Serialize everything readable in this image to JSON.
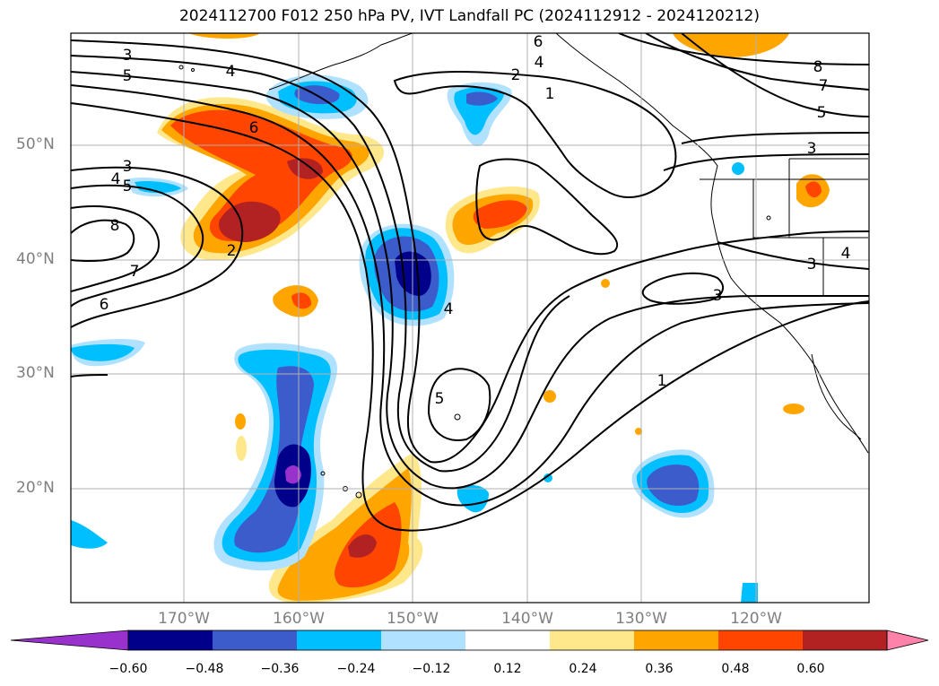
{
  "title": "2024112700 F012 250 hPa PV, IVT Landfall PC (2024112912 - 2024120212)",
  "lat_labels": [
    "50°N",
    "40°N",
    "30°N",
    "20°N"
  ],
  "lon_labels": [
    "170°W",
    "160°W",
    "150°W",
    "140°W",
    "130°W",
    "120°W"
  ],
  "colorbar": {
    "ticks": [
      "−0.60",
      "−0.48",
      "−0.36",
      "−0.24",
      "−0.12",
      "0.12",
      "0.24",
      "0.36",
      "0.48",
      "0.60"
    ],
    "colors": [
      "#9932cc",
      "#00008b",
      "#3c5ccc",
      "#00bfff",
      "#b0e2ff",
      "#ffffff",
      "#ffe88c",
      "#ffa500",
      "#ff4500",
      "#b22222",
      "#ff82ab"
    ]
  },
  "contour_labels": [
    "3",
    "5",
    "4",
    "6",
    "2",
    "1",
    "6",
    "4",
    "8",
    "7",
    "5",
    "3",
    "3",
    "4",
    "5",
    "8",
    "7",
    "6",
    "2",
    "4",
    "5",
    "3",
    "3",
    "4",
    "1"
  ],
  "colors": {
    "contour": "#000000",
    "grid": "#b0b0b0",
    "coast": "#000000"
  }
}
